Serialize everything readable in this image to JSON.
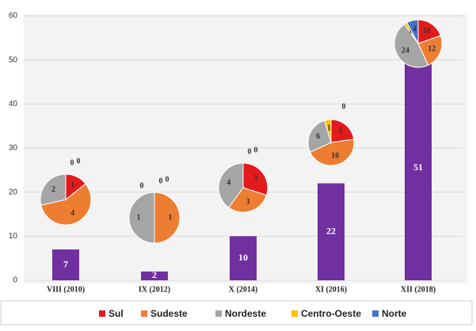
{
  "chart_data": [
    {
      "type": "bar",
      "categories": [
        "VIII (2010)",
        "IX (2012)",
        "X (2014)",
        "XI (2016)",
        "XII (2018)"
      ],
      "values": [
        7,
        2,
        10,
        22,
        51
      ],
      "color": "#7030a0",
      "ylim": [
        0,
        60
      ],
      "yticks": [
        0,
        10,
        20,
        30,
        40,
        50,
        60
      ],
      "grid": true
    },
    {
      "type": "pie",
      "series": [
        {
          "name": "Sul",
          "color": "#e31a1c",
          "values": [
            1,
            0,
            3,
            5,
            10
          ]
        },
        {
          "name": "Sudeste",
          "color": "#ed7d31",
          "values": [
            4,
            1,
            3,
            10,
            12
          ]
        },
        {
          "name": "Nordeste",
          "color": "#a5a5a5",
          "values": [
            2,
            1,
            4,
            6,
            24
          ]
        },
        {
          "name": "Centro-Oeste",
          "color": "#ffc000",
          "values": [
            0,
            0,
            0,
            1,
            1
          ]
        },
        {
          "name": "Norte",
          "color": "#4472c4",
          "values": [
            0,
            0,
            0,
            0,
            4
          ]
        }
      ],
      "legend": "bottom"
    }
  ]
}
